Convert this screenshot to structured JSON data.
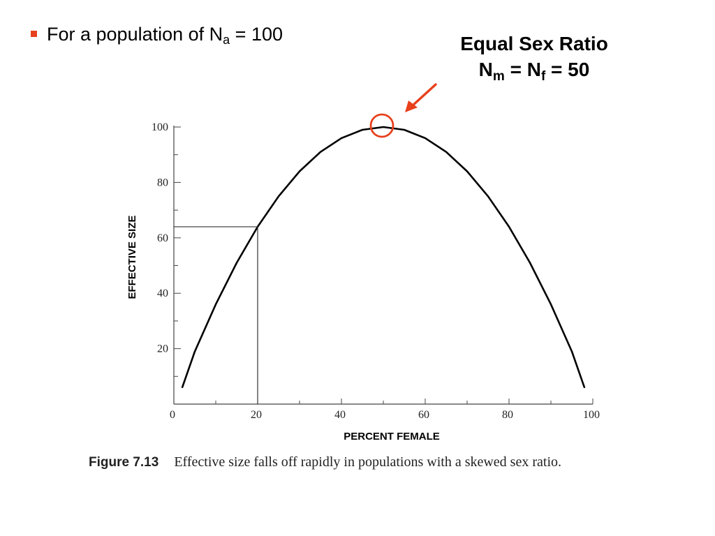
{
  "slide": {
    "bullet": {
      "text": "For a population of N",
      "subscript": "a",
      "suffix": " = 100"
    },
    "annotation": {
      "line1": "Equal Sex Ratio",
      "line2_a": "N",
      "line2_sub_a": "m",
      "line2_b": " = N",
      "line2_sub_b": "f",
      "line2_c": " = 50"
    },
    "caption": {
      "label": "Figure 7.13",
      "text": "Effective size falls off rapidly in populations with a skewed sex ratio."
    }
  },
  "colors": {
    "accent": "#e8401c",
    "ink": "#000000",
    "axis": "#444444"
  },
  "chart_data": {
    "type": "line",
    "xlabel": "PERCENT FEMALE",
    "ylabel": "EFFECTIVE SIZE",
    "xlim": [
      0,
      100
    ],
    "ylim": [
      0,
      100
    ],
    "x_ticks": [
      0,
      20,
      40,
      60,
      80,
      100
    ],
    "y_ticks": [
      20,
      40,
      60,
      80,
      100
    ],
    "grid": false,
    "series": [
      {
        "x": [
          2,
          5,
          10,
          15,
          20,
          25,
          30,
          35,
          40,
          45,
          50,
          55,
          60,
          65,
          70,
          75,
          80,
          85,
          90,
          95,
          98
        ],
        "values": [
          6,
          19,
          36,
          51,
          64,
          75,
          84,
          91,
          96,
          99,
          100,
          99,
          96,
          91,
          84,
          75,
          64,
          51,
          36,
          19,
          6
        ]
      }
    ],
    "reference_point": {
      "x": 20,
      "y": 64
    },
    "highlight_point": {
      "x": 50,
      "y": 100
    }
  }
}
